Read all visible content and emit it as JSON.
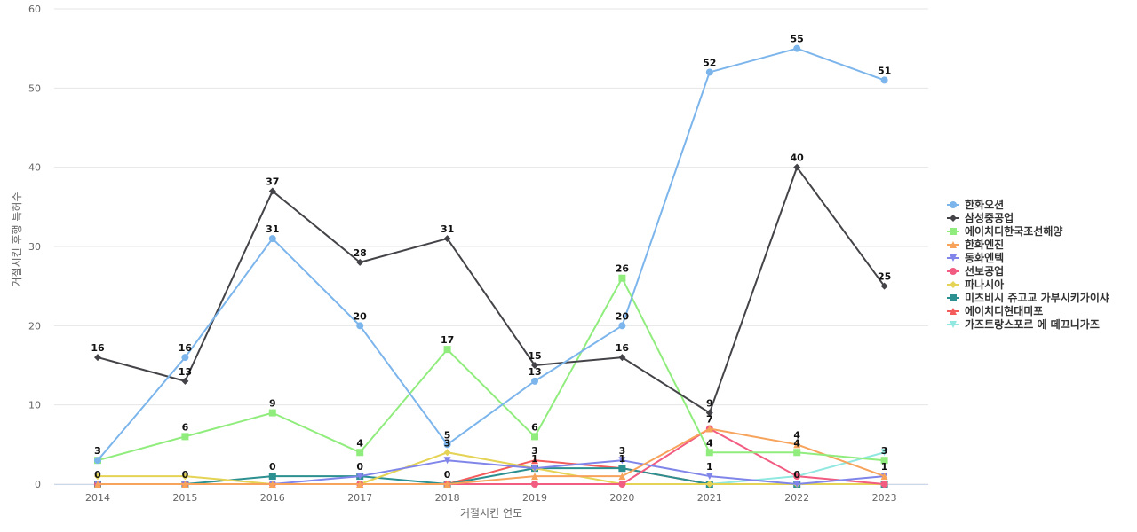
{
  "chart_data": {
    "type": "line",
    "title": "",
    "xlabel": "거절시킨 연도",
    "ylabel": "거절시킨 후행 특허수",
    "x": [
      "2014",
      "2015",
      "2016",
      "2017",
      "2018",
      "2019",
      "2020",
      "2021",
      "2022",
      "2023"
    ],
    "ylim": [
      0,
      60
    ],
    "yticks": [
      0,
      10,
      20,
      30,
      40,
      50,
      60
    ],
    "grid": true,
    "legend": "right",
    "series": [
      {
        "name": "한화오션",
        "color": "#7cb5ec",
        "marker": "circle",
        "values": [
          3,
          16,
          31,
          20,
          5,
          13,
          20,
          52,
          55,
          51
        ],
        "labeled": true
      },
      {
        "name": "삼성중공업",
        "color": "#434348",
        "marker": "diamond",
        "values": [
          16,
          13,
          37,
          28,
          31,
          15,
          16,
          9,
          40,
          25
        ],
        "labeled": true
      },
      {
        "name": "에이치디한국조선해양",
        "color": "#90ed7d",
        "marker": "square",
        "values": [
          3,
          6,
          9,
          4,
          17,
          6,
          26,
          4,
          4,
          3
        ],
        "labeled": true
      },
      {
        "name": "한화엔진",
        "color": "#f7a35c",
        "marker": "triangle",
        "values": [
          0,
          0,
          0,
          0,
          0,
          1,
          1,
          7,
          5,
          1
        ],
        "labeled": false
      },
      {
        "name": "동화엔텍",
        "color": "#8085e9",
        "marker": "triangle-down",
        "values": [
          0,
          0,
          0,
          1,
          3,
          2,
          3,
          1,
          0,
          1
        ],
        "labeled": false
      },
      {
        "name": "선보공업",
        "color": "#f15c80",
        "marker": "circle",
        "values": [
          0,
          0,
          0,
          0,
          0,
          0,
          0,
          7,
          1,
          0
        ],
        "labeled": false
      },
      {
        "name": "파나시아",
        "color": "#e4d354",
        "marker": "diamond",
        "values": [
          1,
          1,
          0,
          0,
          4,
          2,
          0,
          0,
          0,
          0
        ],
        "labeled": false
      },
      {
        "name": "미츠비시 쥬고교 가부시키가이샤",
        "color": "#2b908f",
        "marker": "square",
        "values": [
          0,
          0,
          1,
          1,
          0,
          2,
          2,
          0,
          0,
          0
        ],
        "labeled": false
      },
      {
        "name": "에이치디현대미포",
        "color": "#f45b5b",
        "marker": "triangle",
        "values": [
          0,
          0,
          0,
          0,
          0,
          3,
          2,
          0,
          0,
          0
        ],
        "labeled": false
      },
      {
        "name": "가즈트랑스포르 에 떼끄니가즈",
        "color": "#91e8e1",
        "marker": "triangle-down",
        "values": [
          0,
          0,
          0,
          0,
          0,
          0,
          0,
          0,
          1,
          4
        ],
        "labeled": false
      }
    ],
    "extra_labels": [
      {
        "x": "2014",
        "y": 0,
        "text": "0"
      },
      {
        "x": "2015",
        "y": 0,
        "text": "0"
      },
      {
        "x": "2016",
        "y": 1,
        "text": "0"
      },
      {
        "x": "2017",
        "y": 1,
        "text": "0"
      },
      {
        "x": "2018",
        "y": 0,
        "text": "0"
      },
      {
        "x": "2018",
        "y": 4,
        "text": "3"
      },
      {
        "x": "2019",
        "y": 3,
        "text": "3"
      },
      {
        "x": "2019",
        "y": 2,
        "text": "1"
      },
      {
        "x": "2020",
        "y": 3,
        "text": "3"
      },
      {
        "x": "2020",
        "y": 2,
        "text": "1"
      },
      {
        "x": "2021",
        "y": 7,
        "text": "7"
      },
      {
        "x": "2021",
        "y": 1,
        "text": "1"
      },
      {
        "x": "2022",
        "y": 5,
        "text": "4"
      },
      {
        "x": "2022",
        "y": 0,
        "text": "0"
      },
      {
        "x": "2023",
        "y": 1,
        "text": "1"
      }
    ]
  }
}
